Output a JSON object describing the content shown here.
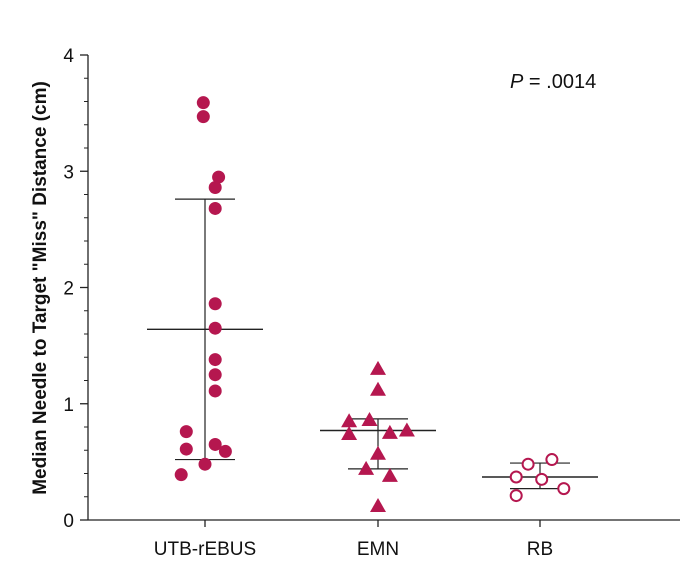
{
  "chart_data": {
    "type": "scatter",
    "ylabel": "Median Needle to Target \"Miss\" Distance (cm)",
    "xlabel": "",
    "ylim": [
      0,
      4
    ],
    "yticks": [
      "0",
      "1",
      "2",
      "3",
      "4"
    ],
    "categories": [
      "UTB-rEBUS",
      "EMN",
      "RB"
    ],
    "annotation": {
      "italic": "P",
      "rest": " = .0014"
    },
    "colors": {
      "marker": "#b5174f",
      "axis": "#222222"
    },
    "groups": [
      {
        "category": "UTB-rEBUS",
        "marker": "filled-circle",
        "points": [
          {
            "offset": -0.05,
            "y": 3.59
          },
          {
            "offset": -0.05,
            "y": 3.47
          },
          {
            "offset": 0.4,
            "y": 2.95
          },
          {
            "offset": 0.3,
            "y": 2.86
          },
          {
            "offset": 0.3,
            "y": 2.68
          },
          {
            "offset": 0.3,
            "y": 1.86
          },
          {
            "offset": 0.3,
            "y": 1.65
          },
          {
            "offset": 0.3,
            "y": 1.38
          },
          {
            "offset": 0.3,
            "y": 1.25
          },
          {
            "offset": 0.3,
            "y": 1.11
          },
          {
            "offset": -0.55,
            "y": 0.76
          },
          {
            "offset": 0.3,
            "y": 0.65
          },
          {
            "offset": -0.55,
            "y": 0.61
          },
          {
            "offset": 0.6,
            "y": 0.59
          },
          {
            "offset": 0.0,
            "y": 0.48
          },
          {
            "offset": -0.7,
            "y": 0.39
          }
        ],
        "median": 1.64,
        "iqr": [
          0.52,
          2.76
        ]
      },
      {
        "category": "EMN",
        "marker": "filled-triangle",
        "points": [
          {
            "offset": 0.0,
            "y": 1.3
          },
          {
            "offset": 0.0,
            "y": 1.12
          },
          {
            "offset": -0.85,
            "y": 0.85
          },
          {
            "offset": -0.25,
            "y": 0.86
          },
          {
            "offset": -0.85,
            "y": 0.74
          },
          {
            "offset": 0.35,
            "y": 0.75
          },
          {
            "offset": 0.85,
            "y": 0.77
          },
          {
            "offset": 0.0,
            "y": 0.57
          },
          {
            "offset": -0.35,
            "y": 0.44
          },
          {
            "offset": 0.35,
            "y": 0.38
          },
          {
            "offset": 0.0,
            "y": 0.12
          }
        ],
        "median": 0.77,
        "iqr": [
          0.44,
          0.87
        ]
      },
      {
        "category": "RB",
        "marker": "open-circle",
        "points": [
          {
            "offset": -0.35,
            "y": 0.48
          },
          {
            "offset": 0.35,
            "y": 0.52
          },
          {
            "offset": -0.7,
            "y": 0.37
          },
          {
            "offset": 0.05,
            "y": 0.35
          },
          {
            "offset": -0.7,
            "y": 0.21
          },
          {
            "offset": 0.7,
            "y": 0.27
          }
        ],
        "median": 0.37,
        "iqr": [
          0.27,
          0.49
        ]
      }
    ]
  }
}
